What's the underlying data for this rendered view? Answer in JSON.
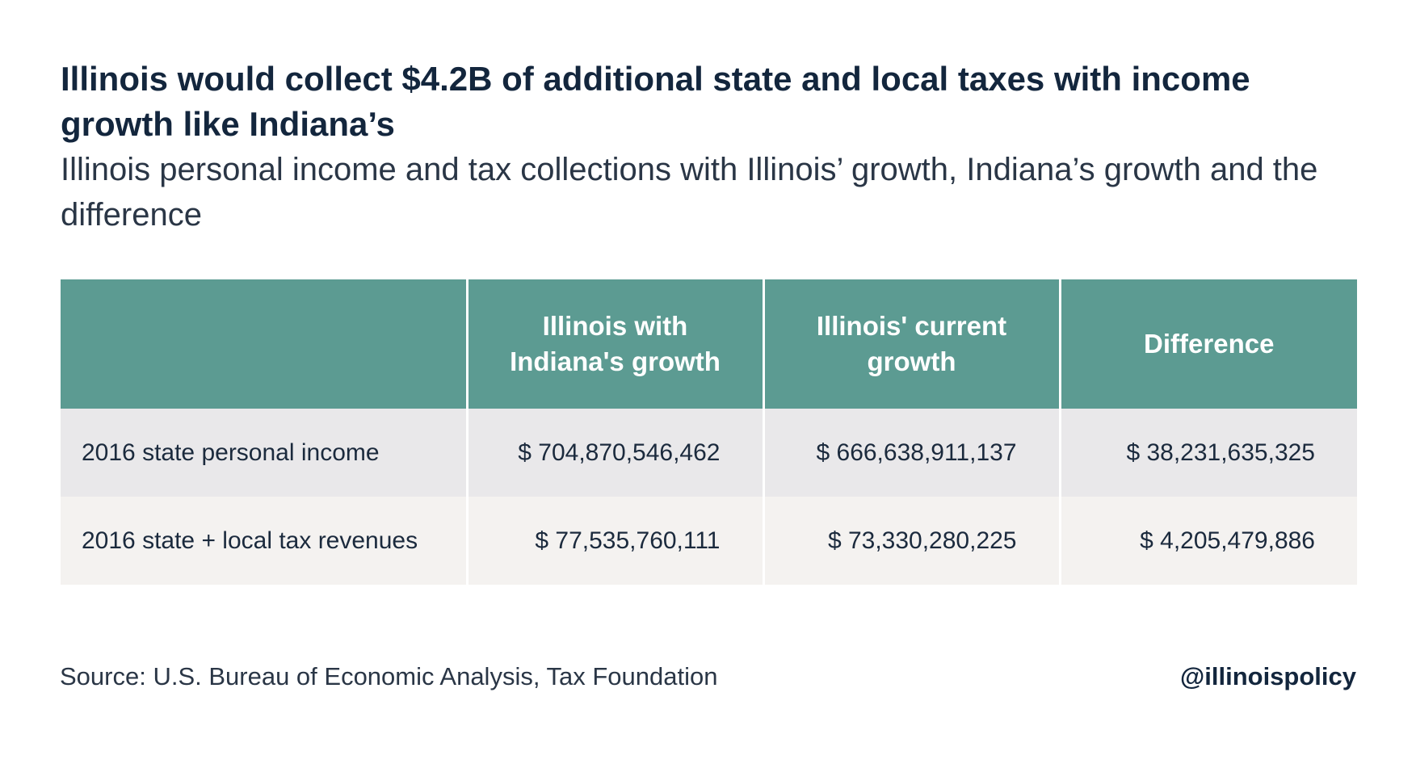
{
  "chart_data": {
    "type": "table",
    "title": "Illinois would collect $4.2B of additional state and local taxes with income growth like Indiana’s",
    "subtitle": "Illinois personal income and tax collections with Illinois’ growth, Indiana’s growth and the difference",
    "columns": [
      "",
      "Illinois with Indiana's growth",
      "Illinois' current growth",
      "Difference"
    ],
    "rows": [
      {
        "label": "2016 state personal income",
        "values": [
          "$ 704,870,546,462",
          "$ 666,638,911,137",
          "$ 38,231,635,325"
        ]
      },
      {
        "label": "2016 state + local tax revenues",
        "values": [
          "$ 77,535,760,111",
          "$ 73,330,280,225",
          "$ 4,205,479,886"
        ]
      }
    ],
    "source": "Source: U.S. Bureau of Economic Analysis, Tax Foundation",
    "handle": "@illinoispolicy"
  },
  "colors": {
    "header_bg": "#5c9b92",
    "row_1_bg": "#e9e8ea",
    "row_2_bg": "#f4f2f0",
    "title_text": "#13263d"
  }
}
